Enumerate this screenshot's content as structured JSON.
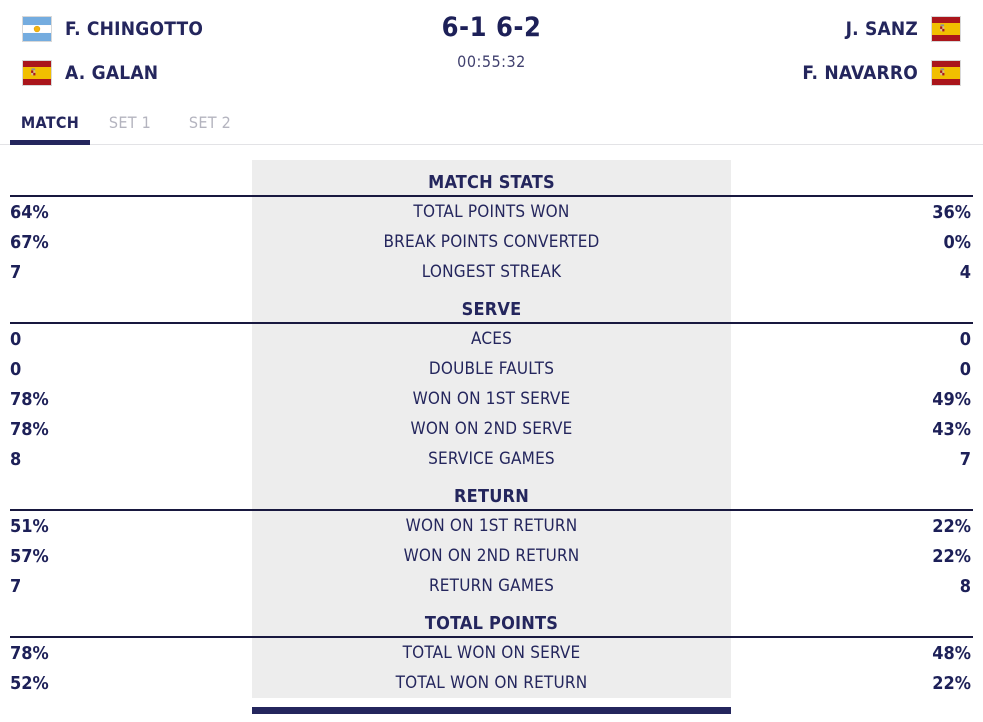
{
  "header": {
    "score": "6-1 6-2",
    "duration": "00:55:32",
    "team_left": {
      "players": [
        {
          "name": "F. CHINGOTTO",
          "flag": "argentina"
        },
        {
          "name": "A. GALAN",
          "flag": "spain"
        }
      ]
    },
    "team_right": {
      "players": [
        {
          "name": "J. SANZ",
          "flag": "spain"
        },
        {
          "name": "F. NAVARRO",
          "flag": "spain"
        }
      ]
    }
  },
  "tabs": [
    {
      "label": "MATCH",
      "active": true
    },
    {
      "label": "SET 1",
      "active": false
    },
    {
      "label": "SET 2",
      "active": false
    }
  ],
  "stats": {
    "sections": [
      {
        "title": "MATCH STATS",
        "rows": [
          {
            "left": "64%",
            "label": "TOTAL POINTS WON",
            "right": "36%"
          },
          {
            "left": "67%",
            "label": "BREAK POINTS CONVERTED",
            "right": "0%"
          },
          {
            "left": "7",
            "label": "LONGEST STREAK",
            "right": "4"
          }
        ]
      },
      {
        "title": "SERVE",
        "rows": [
          {
            "left": "0",
            "label": "ACES",
            "right": "0"
          },
          {
            "left": "0",
            "label": "DOUBLE FAULTS",
            "right": "0"
          },
          {
            "left": "78%",
            "label": "WON ON 1ST SERVE",
            "right": "49%"
          },
          {
            "left": "78%",
            "label": "WON ON 2ND SERVE",
            "right": "43%"
          },
          {
            "left": "8",
            "label": "SERVICE GAMES",
            "right": "7"
          }
        ]
      },
      {
        "title": "RETURN",
        "rows": [
          {
            "left": "51%",
            "label": "WON ON 1ST RETURN",
            "right": "22%"
          },
          {
            "left": "57%",
            "label": "WON ON 2ND RETURN",
            "right": "22%"
          },
          {
            "left": "7",
            "label": "RETURN GAMES",
            "right": "8"
          }
        ]
      },
      {
        "title": "TOTAL POINTS",
        "rows": [
          {
            "left": "78%",
            "label": "TOTAL WON ON SERVE",
            "right": "48%"
          },
          {
            "left": "52%",
            "label": "TOTAL WON ON RETURN",
            "right": "22%"
          }
        ]
      }
    ]
  },
  "colors": {
    "navy": "#24265d",
    "label_background": "#ededed",
    "inactive_tab": "#b4b4bf",
    "section_divider": "#18183f",
    "argentina_blue": "#74ACDF",
    "argentina_sun": "#F6B40E",
    "spain_red": "#AA151B",
    "spain_yellow": "#F1BF00"
  }
}
